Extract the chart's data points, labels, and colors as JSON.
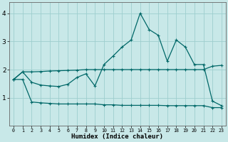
{
  "xlabel": "Humidex (Indice chaleur)",
  "bg_color": "#c8e8e8",
  "grid_color": "#9ecece",
  "line_color": "#006868",
  "xlim": [
    -0.5,
    23.5
  ],
  "ylim": [
    0.0,
    4.4
  ],
  "yticks": [
    1,
    2,
    3,
    4
  ],
  "xticks": [
    0,
    1,
    2,
    3,
    4,
    5,
    6,
    7,
    8,
    9,
    10,
    11,
    12,
    13,
    14,
    15,
    16,
    17,
    18,
    19,
    20,
    21,
    22,
    23
  ],
  "x": [
    0,
    1,
    2,
    3,
    4,
    5,
    6,
    7,
    8,
    9,
    10,
    11,
    12,
    13,
    14,
    15,
    16,
    17,
    18,
    19,
    20,
    21,
    22,
    23
  ],
  "y_main": [
    1.65,
    1.92,
    1.55,
    1.45,
    1.42,
    1.4,
    1.48,
    1.72,
    1.85,
    1.42,
    2.18,
    2.48,
    2.8,
    3.05,
    4.0,
    3.42,
    3.22,
    2.3,
    3.05,
    2.8,
    2.18,
    2.18,
    0.88,
    0.72
  ],
  "y_upper": [
    1.65,
    1.92,
    1.92,
    1.93,
    1.95,
    1.96,
    1.97,
    1.98,
    2.0,
    2.0,
    2.0,
    2.0,
    2.0,
    2.0,
    2.0,
    2.0,
    2.0,
    2.0,
    2.0,
    2.0,
    2.0,
    2.0,
    2.12,
    2.15
  ],
  "y_lower": [
    1.65,
    1.65,
    0.85,
    0.82,
    0.8,
    0.78,
    0.78,
    0.78,
    0.78,
    0.78,
    0.75,
    0.75,
    0.73,
    0.73,
    0.73,
    0.73,
    0.73,
    0.72,
    0.72,
    0.72,
    0.72,
    0.72,
    0.65,
    0.65
  ],
  "lw": 0.9,
  "ms": 3.5
}
